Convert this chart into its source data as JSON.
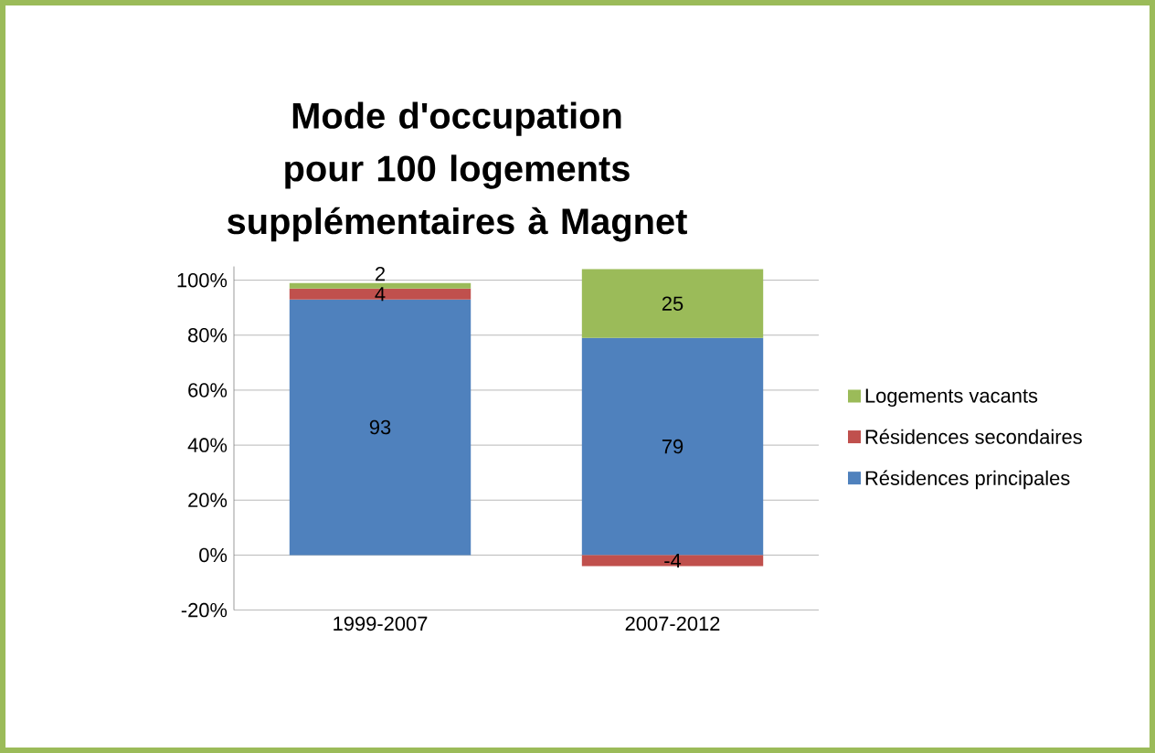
{
  "chart_data": {
    "type": "bar",
    "stacked": true,
    "title": "Mode d'occupation pour 100 logements supplémentaires à Magnet",
    "categories": [
      "1999-2007",
      "2007-2012"
    ],
    "series": [
      {
        "name": "Résidences principales",
        "color": "#4f81bd",
        "values": [
          93,
          79
        ]
      },
      {
        "name": "Résidences secondaires",
        "color": "#c0504d",
        "values": [
          4,
          -4
        ]
      },
      {
        "name": "Logements vacants",
        "color": "#9bbb59",
        "values": [
          2,
          25
        ]
      }
    ],
    "ylim": [
      -20,
      105
    ],
    "yticks": [
      {
        "value": -20,
        "label": "-20%"
      },
      {
        "value": 0,
        "label": "0%"
      },
      {
        "value": 20,
        "label": "20%"
      },
      {
        "value": 40,
        "label": "40%"
      },
      {
        "value": 60,
        "label": "60%"
      },
      {
        "value": 80,
        "label": "80%"
      },
      {
        "value": 100,
        "label": "100%"
      }
    ],
    "grid": "y",
    "legend": "right",
    "data_labels": true
  }
}
